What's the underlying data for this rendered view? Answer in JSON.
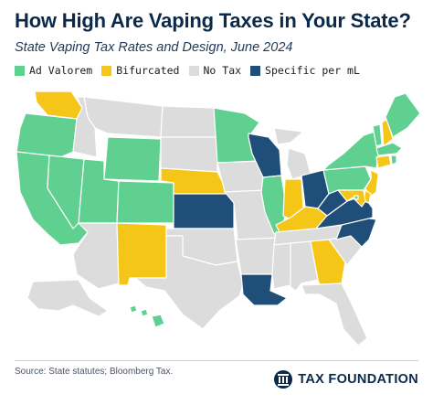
{
  "header": {
    "title": "How High Are Vaping Taxes in Your State?",
    "subtitle": "State Vaping Tax Rates and Design, June 2024"
  },
  "legend": [
    {
      "key": "ad_valorem",
      "label": "Ad Valorem",
      "color": "#5fd08f"
    },
    {
      "key": "bifurcated",
      "label": "Bifurcated",
      "color": "#f5c518"
    },
    {
      "key": "no_tax",
      "label": "No Tax",
      "color": "#dcdcdc"
    },
    {
      "key": "specific",
      "label": "Specific per mL",
      "color": "#1f4e79"
    }
  ],
  "map": {
    "states": {
      "WA": "bifurcated",
      "OR": "ad_valorem",
      "CA": "ad_valorem",
      "NV": "ad_valorem",
      "ID": "no_tax",
      "MT": "no_tax",
      "WY": "ad_valorem",
      "UT": "ad_valorem",
      "CO": "ad_valorem",
      "AZ": "no_tax",
      "NM": "bifurcated",
      "ND": "no_tax",
      "SD": "no_tax",
      "NE": "bifurcated",
      "KS": "specific",
      "OK": "no_tax",
      "TX": "no_tax",
      "MN": "ad_valorem",
      "IA": "no_tax",
      "MO": "no_tax",
      "AR": "no_tax",
      "LA": "specific",
      "WI": "specific",
      "IL": "ad_valorem",
      "MI": "no_tax",
      "IN": "bifurcated",
      "OH": "specific",
      "KY": "bifurcated",
      "TN": "no_tax",
      "MS": "no_tax",
      "AL": "no_tax",
      "GA": "bifurcated",
      "FL": "no_tax",
      "SC": "no_tax",
      "NC": "specific",
      "VA": "specific",
      "WV": "specific",
      "PA": "ad_valorem",
      "NY": "ad_valorem",
      "VT": "ad_valorem",
      "NH": "bifurcated",
      "ME": "ad_valorem",
      "MA": "ad_valorem",
      "CT": "bifurcated",
      "RI": "ad_valorem",
      "NJ": "bifurcated",
      "DE": "bifurcated",
      "MD": "bifurcated",
      "DC": "ad_valorem",
      "AK": "no_tax",
      "HI": "ad_valorem"
    }
  },
  "footer": {
    "source": "Source: State statutes; Bloomberg Tax.",
    "brand": "TAX FOUNDATION"
  }
}
